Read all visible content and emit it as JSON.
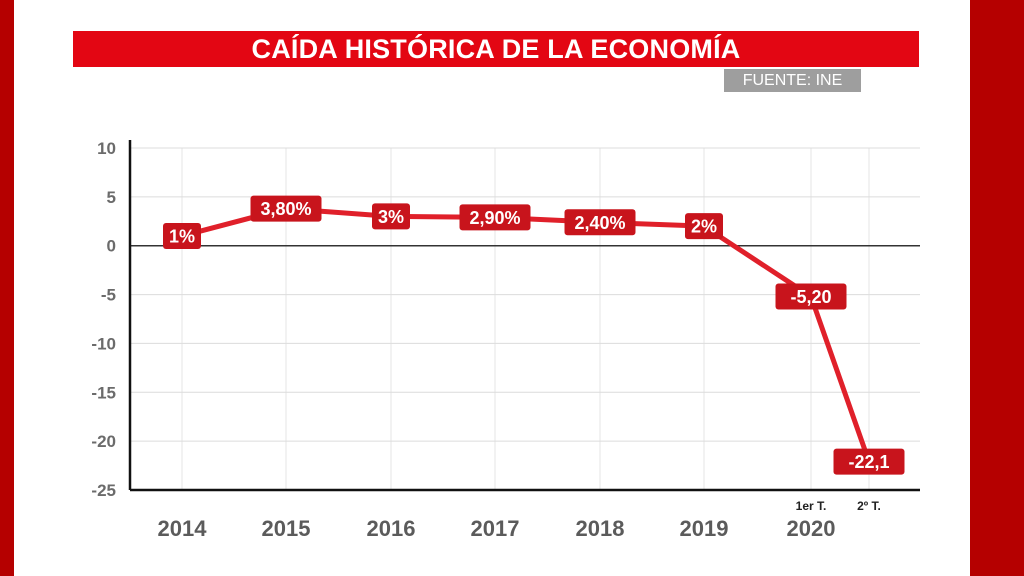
{
  "header": {
    "title": "CAÍDA HISTÓRICA DE LA ECONOMÍA",
    "source": "FUENTE: INE"
  },
  "colors": {
    "background_frame": "#b50000",
    "title_bar": "#e30613",
    "source_badge": "#9e9e9e",
    "line": "#e0202a",
    "label_box": "#c8141c"
  },
  "chart_data": {
    "type": "line",
    "title": "CAÍDA HISTÓRICA DE LA ECONOMÍA",
    "xlabel": "",
    "ylabel": "",
    "ylim": [
      -25,
      10
    ],
    "yticks": [
      "10",
      "5",
      "0",
      "-5",
      "-10",
      "-15",
      "-20",
      "-25"
    ],
    "categories": [
      "2014",
      "2015",
      "2016",
      "2017",
      "2018",
      "2019",
      "2020"
    ],
    "subcategories": [
      "1er T.",
      "2º T."
    ],
    "grid": true,
    "legend": "none",
    "series": [
      {
        "points": [
          {
            "x": "2014",
            "y": 1,
            "label": "1%"
          },
          {
            "x": "2015",
            "y": 3.8,
            "label": "3,80%"
          },
          {
            "x": "2016",
            "y": 3,
            "label": "3%"
          },
          {
            "x": "2017",
            "y": 2.9,
            "label": "2,90%"
          },
          {
            "x": "2018",
            "y": 2.4,
            "label": "2,40%"
          },
          {
            "x": "2019",
            "y": 2,
            "label": "2%"
          },
          {
            "x": "2020 1er T.",
            "y": -5.2,
            "label": "-5,20"
          },
          {
            "x": "2020 2º T.",
            "y": -22.1,
            "label": "-22,1"
          }
        ]
      }
    ]
  }
}
